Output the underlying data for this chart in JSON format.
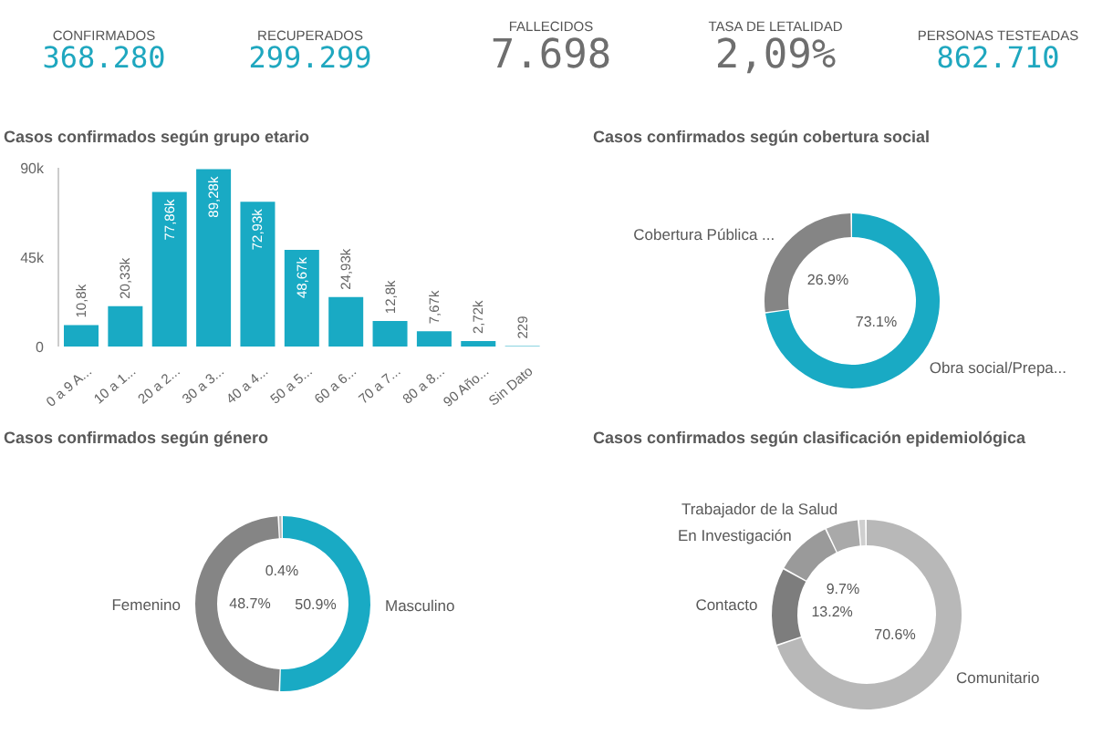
{
  "chart_data": [
    {
      "type": "other",
      "annotations": [
        "CONFIRMADOS",
        "368.280",
        "RECUPERADOS",
        "299.299",
        "FALLECIDOS",
        "7.698",
        "TASA DE LETALIDAD",
        "2,09%",
        "PERSONAS TESTEADAS",
        "862.710"
      ],
      "colors": [
        "#1fa7bf",
        "#1fa7bf",
        "#6e6e6e",
        "#6e6e6e",
        "#1fa7bf"
      ]
    },
    {
      "type": "bar",
      "title": "Casos confirmados según grupo etario",
      "categories": [
        "0 a 9 A...",
        "10 a 1...",
        "20 a 2...",
        "30 a 3...",
        "40 a 4...",
        "50 a 5...",
        "60 a 6...",
        "70 a 7...",
        "80 a 8...",
        "90 Año...",
        "Sin Dato"
      ],
      "values": [
        10800,
        20330,
        77860,
        89280,
        72930,
        48670,
        24930,
        12800,
        7670,
        2720,
        229
      ],
      "value_labels": [
        "10,8k",
        "20,33k",
        "77,86k",
        "89,28k",
        "72,93k",
        "48,67k",
        "24,93k",
        "12,8k",
        "7,67k",
        "2,72k",
        "229"
      ],
      "color": "#19aac4",
      "ylim": [
        0,
        90000
      ],
      "yticks": [
        {
          "value": 0,
          "label": "0"
        },
        {
          "value": 45000,
          "label": "45k"
        },
        {
          "value": 90000,
          "label": "90k"
        }
      ]
    },
    {
      "type": "donut",
      "title": "Casos confirmados según cobertura social",
      "categories": [
        "Obra social/Prepa...",
        "Cobertura Pública ..."
      ],
      "values": [
        73.1,
        26.9
      ],
      "value_labels": [
        "73.1%",
        "26.9%"
      ],
      "colors": [
        "#19aac4",
        "#858585"
      ]
    },
    {
      "type": "donut",
      "title": "Casos confirmados según género",
      "categories": [
        "Masculino",
        "Femenino",
        null
      ],
      "values": [
        50.9,
        48.7,
        0.4
      ],
      "value_labels": [
        "50.9%",
        "48.7%",
        "0.4%"
      ],
      "colors": [
        "#19aac4",
        "#858585",
        "#b5b5b5"
      ]
    },
    {
      "type": "donut",
      "title": "Casos confirmados según clasificación epidemiológica",
      "categories": [
        "Comunitario",
        "Contacto",
        "En Investigación",
        "Trabajador de la Salud",
        null
      ],
      "values": [
        70.6,
        13.2,
        9.7,
        5.5,
        1.0
      ],
      "value_labels": [
        "70.6%",
        "13.2%",
        "9.7%",
        null,
        null
      ],
      "colors": [
        "#b8b8b8",
        "#7d7d7d",
        "#9a9a9a",
        "#a9a9a9",
        "#cfcfcf"
      ]
    }
  ]
}
